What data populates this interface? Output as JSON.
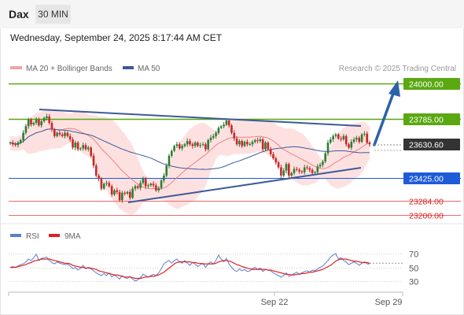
{
  "header": {
    "symbol": "Dax",
    "timeframe": "30 MIN",
    "datetime": "Wednesday, September 24, 2025 8:17:44 AM CET"
  },
  "legend": {
    "ma20": "MA 20 + Bollinger Bands",
    "ma50": "MA 50",
    "copyright": "Research © 2025 Trading Central",
    "rsi": "RSI",
    "ma9": "9MA"
  },
  "colors": {
    "up": "#2e7d32",
    "down": "#c62828",
    "resistance": "#5aa812",
    "pivot": "#1e5bd8",
    "support": "#f06a6a",
    "current": "#333333",
    "trendline": "#3d5a99",
    "arrow": "#2d62a8",
    "band": "#fddede",
    "ma20": "#f08080",
    "ma50": "#3c5a9a",
    "rsi": "#5a7fd0",
    "rsi_ma": "#e02020"
  },
  "levels": [
    {
      "value": 24000.0,
      "label": "24000.00",
      "kind": "resistance"
    },
    {
      "value": 23785.0,
      "label": "23785.00",
      "kind": "resistance"
    },
    {
      "value": 23630.6,
      "label": "23630.60",
      "kind": "current"
    },
    {
      "value": 23425.0,
      "label": "23425.00",
      "kind": "pivot"
    },
    {
      "value": 23284.0,
      "label": "23284.00",
      "kind": "support"
    },
    {
      "value": 23200.0,
      "label": "23200.00",
      "kind": "support"
    }
  ],
  "xaxis": {
    "labels": [
      "Sep 22",
      "Sep 29"
    ]
  },
  "rsi_axis": {
    "labels": [
      "70",
      "50",
      "30"
    ]
  },
  "chart_data": {
    "type": "candlestick",
    "title": "",
    "price_range": [
      23150,
      24050
    ],
    "closes": [
      23640,
      23630,
      23625,
      23640,
      23655,
      23700,
      23740,
      23780,
      23750,
      23760,
      23780,
      23745,
      23770,
      23790,
      23800,
      23760,
      23720,
      23680,
      23700,
      23690,
      23680,
      23700,
      23680,
      23660,
      23610,
      23640,
      23600,
      23605,
      23625,
      23600,
      23610,
      23560,
      23500,
      23440,
      23420,
      23360,
      23390,
      23395,
      23375,
      23325,
      23350,
      23340,
      23290,
      23335,
      23330,
      23340,
      23305,
      23360,
      23375,
      23365,
      23395,
      23420,
      23375,
      23380,
      23390,
      23380,
      23350,
      23365,
      23410,
      23440,
      23500,
      23560,
      23590,
      23620,
      23630,
      23605,
      23620,
      23630,
      23650,
      23630,
      23620,
      23640,
      23620,
      23625,
      23630,
      23600,
      23655,
      23670,
      23680,
      23700,
      23730,
      23740,
      23750,
      23775,
      23745,
      23700,
      23665,
      23630,
      23650,
      23620,
      23645,
      23630,
      23630,
      23645,
      23655,
      23650,
      23660,
      23600,
      23640,
      23600,
      23570,
      23545,
      23520,
      23490,
      23440,
      23470,
      23510,
      23440,
      23455,
      23480,
      23475,
      23465,
      23460,
      23490,
      23485,
      23475,
      23455,
      23460,
      23495,
      23505,
      23525,
      23575,
      23640,
      23660,
      23680,
      23690,
      23665,
      23660,
      23680,
      23630,
      23610,
      23645,
      23660,
      23670,
      23645,
      23690,
      23695,
      23640,
      23630
    ],
    "rsi": [
      50,
      51,
      50,
      52,
      54,
      55,
      58,
      62,
      60,
      64,
      69,
      60,
      63,
      64,
      65,
      60,
      57,
      55,
      58,
      56,
      55,
      54,
      55,
      52,
      48,
      50,
      46,
      49,
      53,
      48,
      50,
      48,
      45,
      42,
      40,
      38,
      41,
      38,
      42,
      36,
      39,
      36,
      33,
      38,
      35,
      34,
      37,
      33,
      30,
      32,
      35,
      40,
      38,
      36,
      38,
      40,
      38,
      42,
      48,
      55,
      58,
      60,
      56,
      60,
      62,
      58,
      56,
      60,
      56,
      53,
      57,
      55,
      51,
      54,
      56,
      50,
      55,
      58,
      55,
      60,
      68,
      62,
      58,
      63,
      55,
      50,
      46,
      44,
      48,
      45,
      47,
      44,
      45,
      48,
      50,
      47,
      49,
      44,
      47,
      46,
      45,
      42,
      40,
      38,
      36,
      38,
      42,
      37,
      39,
      41,
      43,
      40,
      42,
      44,
      45,
      43,
      46,
      45,
      48,
      50,
      52,
      56,
      60,
      65,
      68,
      70,
      62,
      64,
      60,
      58,
      54,
      56,
      58,
      56,
      53,
      56,
      58,
      55,
      55
    ],
    "rsi_ma": [
      50,
      50,
      50,
      51,
      52,
      53,
      54,
      56,
      57,
      59,
      60,
      61,
      62,
      62,
      62,
      62,
      61,
      60,
      59,
      58,
      57,
      56,
      56,
      55,
      53,
      52,
      51,
      50,
      50,
      49,
      49,
      49,
      48,
      47,
      45,
      44,
      43,
      42,
      41,
      40,
      39,
      39,
      38,
      37,
      36,
      36,
      36,
      35,
      34,
      34,
      34,
      35,
      36,
      36,
      37,
      37,
      38,
      39,
      41,
      43,
      46,
      49,
      52,
      55,
      57,
      58,
      58,
      58,
      58,
      58,
      57,
      57,
      56,
      56,
      55,
      55,
      55,
      55,
      55,
      56,
      58,
      59,
      60,
      60,
      59,
      58,
      56,
      54,
      53,
      51,
      50,
      49,
      48,
      47,
      47,
      47,
      47,
      47,
      47,
      46,
      46,
      45,
      44,
      43,
      42,
      41,
      40,
      40,
      39,
      39,
      40,
      40,
      41,
      41,
      42,
      43,
      43,
      44,
      45,
      46,
      47,
      49,
      51,
      53,
      56,
      59,
      61,
      62,
      62,
      62,
      61,
      60,
      59,
      59,
      58,
      57,
      57,
      57,
      56
    ]
  }
}
